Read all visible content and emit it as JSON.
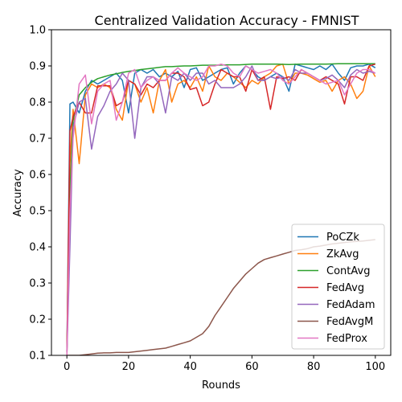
{
  "chart_data": {
    "type": "line",
    "title": "Centralized Validation Accuracy - FMNIST",
    "xlabel": "Rounds",
    "ylabel": "Accuracy",
    "xlim": [
      -5,
      105
    ],
    "ylim": [
      0.1,
      1.0
    ],
    "xticks": [
      0,
      20,
      40,
      60,
      80,
      100
    ],
    "yticks": [
      0.1,
      0.2,
      0.3,
      0.4,
      0.5,
      0.6,
      0.7,
      0.8,
      0.9,
      1.0
    ],
    "xtick_labels": [
      "0",
      "20",
      "40",
      "60",
      "80",
      "100"
    ],
    "ytick_labels": [
      "0.1",
      "0.2",
      "0.3",
      "0.4",
      "0.5",
      "0.6",
      "0.7",
      "0.8",
      "0.9",
      "1.0"
    ],
    "grid": false,
    "legend_position": "lower right",
    "series": [
      {
        "name": "PoCZk",
        "color": "#1f77b4",
        "x": [
          0,
          1,
          2,
          4,
          6,
          8,
          10,
          12,
          14,
          16,
          18,
          20,
          22,
          24,
          26,
          28,
          30,
          32,
          34,
          36,
          38,
          40,
          42,
          44,
          46,
          48,
          50,
          52,
          54,
          56,
          58,
          60,
          62,
          64,
          66,
          68,
          70,
          72,
          74,
          76,
          78,
          80,
          82,
          84,
          86,
          88,
          90,
          92,
          94,
          96,
          98,
          100
        ],
        "y": [
          0.11,
          0.795,
          0.8,
          0.77,
          0.83,
          0.86,
          0.85,
          0.86,
          0.87,
          0.88,
          0.86,
          0.77,
          0.88,
          0.89,
          0.88,
          0.89,
          0.87,
          0.88,
          0.87,
          0.885,
          0.84,
          0.89,
          0.895,
          0.86,
          0.87,
          0.88,
          0.89,
          0.895,
          0.85,
          0.88,
          0.9,
          0.89,
          0.87,
          0.86,
          0.87,
          0.88,
          0.87,
          0.83,
          0.905,
          0.9,
          0.895,
          0.89,
          0.9,
          0.89,
          0.905,
          0.88,
          0.86,
          0.895,
          0.9,
          0.9,
          0.905,
          0.895
        ]
      },
      {
        "name": "ZkAvg",
        "color": "#ff7f0e",
        "x": [
          0,
          1,
          2,
          4,
          6,
          8,
          10,
          12,
          14,
          16,
          18,
          20,
          22,
          24,
          26,
          28,
          30,
          32,
          34,
          36,
          38,
          40,
          42,
          44,
          46,
          48,
          50,
          52,
          54,
          56,
          58,
          60,
          62,
          64,
          66,
          68,
          70,
          72,
          74,
          76,
          78,
          80,
          82,
          84,
          86,
          88,
          90,
          92,
          94,
          96,
          98,
          100
        ],
        "y": [
          0.1,
          0.63,
          0.78,
          0.63,
          0.82,
          0.85,
          0.84,
          0.85,
          0.84,
          0.78,
          0.75,
          0.86,
          0.85,
          0.8,
          0.84,
          0.77,
          0.86,
          0.89,
          0.8,
          0.85,
          0.86,
          0.84,
          0.87,
          0.83,
          0.9,
          0.87,
          0.86,
          0.88,
          0.87,
          0.855,
          0.84,
          0.86,
          0.85,
          0.87,
          0.88,
          0.9,
          0.905,
          0.85,
          0.88,
          0.88,
          0.875,
          0.865,
          0.855,
          0.86,
          0.83,
          0.86,
          0.87,
          0.85,
          0.81,
          0.83,
          0.9,
          0.87
        ]
      },
      {
        "name": "ContAvg",
        "color": "#2ca02c",
        "x": [
          0,
          1,
          2,
          4,
          6,
          8,
          10,
          12,
          14,
          16,
          18,
          20,
          22,
          24,
          26,
          28,
          30,
          32,
          34,
          36,
          38,
          40,
          44,
          48,
          52,
          56,
          60,
          64,
          68,
          72,
          76,
          80,
          84,
          88,
          92,
          96,
          100
        ],
        "y": [
          0.11,
          0.55,
          0.75,
          0.82,
          0.84,
          0.855,
          0.865,
          0.87,
          0.875,
          0.878,
          0.882,
          0.885,
          0.887,
          0.89,
          0.892,
          0.894,
          0.896,
          0.898,
          0.898,
          0.899,
          0.9,
          0.9,
          0.902,
          0.902,
          0.903,
          0.903,
          0.905,
          0.905,
          0.905,
          0.904,
          0.905,
          0.905,
          0.905,
          0.906,
          0.906,
          0.906,
          0.906
        ]
      },
      {
        "name": "FedAvg",
        "color": "#d62728",
        "x": [
          0,
          1,
          2,
          4,
          6,
          8,
          10,
          12,
          14,
          16,
          18,
          20,
          22,
          24,
          26,
          28,
          30,
          32,
          34,
          36,
          38,
          40,
          42,
          44,
          46,
          48,
          50,
          52,
          54,
          56,
          58,
          60,
          62,
          64,
          66,
          68,
          70,
          72,
          74,
          76,
          78,
          80,
          82,
          84,
          86,
          88,
          90,
          92,
          94,
          96,
          98,
          100
        ],
        "y": [
          0.11,
          0.72,
          0.76,
          0.8,
          0.77,
          0.77,
          0.845,
          0.845,
          0.845,
          0.79,
          0.8,
          0.86,
          0.85,
          0.82,
          0.85,
          0.84,
          0.86,
          0.86,
          0.88,
          0.88,
          0.87,
          0.835,
          0.84,
          0.79,
          0.8,
          0.85,
          0.89,
          0.88,
          0.87,
          0.87,
          0.83,
          0.89,
          0.86,
          0.87,
          0.78,
          0.87,
          0.865,
          0.87,
          0.86,
          0.89,
          0.88,
          0.87,
          0.86,
          0.87,
          0.86,
          0.85,
          0.795,
          0.87,
          0.87,
          0.86,
          0.9,
          0.905
        ]
      },
      {
        "name": "FedAdam",
        "color": "#9467bd",
        "x": [
          0,
          1,
          2,
          4,
          6,
          8,
          10,
          12,
          14,
          16,
          18,
          20,
          22,
          24,
          26,
          28,
          30,
          32,
          34,
          36,
          38,
          40,
          42,
          44,
          46,
          48,
          50,
          52,
          54,
          56,
          58,
          60,
          62,
          64,
          66,
          68,
          70,
          72,
          74,
          76,
          78,
          80,
          82,
          84,
          86,
          88,
          90,
          92,
          94,
          96,
          98,
          100
        ],
        "y": [
          0.1,
          0.4,
          0.73,
          0.8,
          0.81,
          0.67,
          0.76,
          0.79,
          0.83,
          0.85,
          0.88,
          0.86,
          0.7,
          0.84,
          0.87,
          0.87,
          0.85,
          0.77,
          0.87,
          0.86,
          0.88,
          0.86,
          0.88,
          0.88,
          0.85,
          0.86,
          0.84,
          0.84,
          0.84,
          0.85,
          0.87,
          0.9,
          0.86,
          0.86,
          0.87,
          0.865,
          0.87,
          0.86,
          0.89,
          0.88,
          0.88,
          0.87,
          0.86,
          0.865,
          0.875,
          0.86,
          0.84,
          0.875,
          0.89,
          0.88,
          0.885,
          0.88
        ]
      },
      {
        "name": "FedAvgM",
        "color": "#8c564b",
        "x": [
          0,
          2,
          4,
          6,
          8,
          10,
          12,
          14,
          16,
          18,
          20,
          22,
          24,
          26,
          28,
          30,
          32,
          34,
          36,
          38,
          40,
          42,
          44,
          46,
          48,
          50,
          52,
          54,
          56,
          58,
          60,
          62,
          64,
          66,
          68,
          70,
          72,
          74,
          76,
          78,
          80,
          82,
          84,
          86,
          88,
          90,
          92,
          94,
          96,
          98,
          100
        ],
        "y": [
          0.1,
          0.1,
          0.1,
          0.102,
          0.104,
          0.106,
          0.107,
          0.107,
          0.108,
          0.108,
          0.108,
          0.11,
          0.112,
          0.114,
          0.116,
          0.118,
          0.12,
          0.125,
          0.13,
          0.135,
          0.14,
          0.15,
          0.16,
          0.18,
          0.21,
          0.235,
          0.26,
          0.285,
          0.305,
          0.325,
          0.34,
          0.355,
          0.365,
          0.37,
          0.375,
          0.38,
          0.385,
          0.39,
          0.392,
          0.395,
          0.4,
          0.402,
          0.405,
          0.408,
          0.41,
          0.412,
          0.414,
          0.415,
          0.416,
          0.418,
          0.42
        ]
      },
      {
        "name": "FedProx",
        "color": "#e377c2",
        "x": [
          0,
          1,
          2,
          4,
          6,
          8,
          10,
          12,
          14,
          16,
          18,
          20,
          22,
          24,
          26,
          28,
          30,
          32,
          34,
          36,
          38,
          40,
          42,
          44,
          46,
          48,
          50,
          52,
          54,
          56,
          58,
          60,
          62,
          64,
          66,
          68,
          70,
          72,
          74,
          76,
          78,
          80,
          82,
          84,
          86,
          88,
          90,
          92,
          94,
          96,
          98,
          100
        ],
        "y": [
          0.1,
          0.5,
          0.7,
          0.85,
          0.875,
          0.74,
          0.83,
          0.85,
          0.86,
          0.75,
          0.8,
          0.88,
          0.89,
          0.84,
          0.86,
          0.87,
          0.86,
          0.86,
          0.88,
          0.895,
          0.88,
          0.87,
          0.86,
          0.87,
          0.9,
          0.9,
          0.905,
          0.9,
          0.88,
          0.87,
          0.9,
          0.89,
          0.88,
          0.885,
          0.89,
          0.88,
          0.86,
          0.85,
          0.87,
          0.89,
          0.88,
          0.87,
          0.86,
          0.85,
          0.855,
          0.86,
          0.82,
          0.85,
          0.88,
          0.89,
          0.89,
          0.88
        ]
      }
    ]
  }
}
